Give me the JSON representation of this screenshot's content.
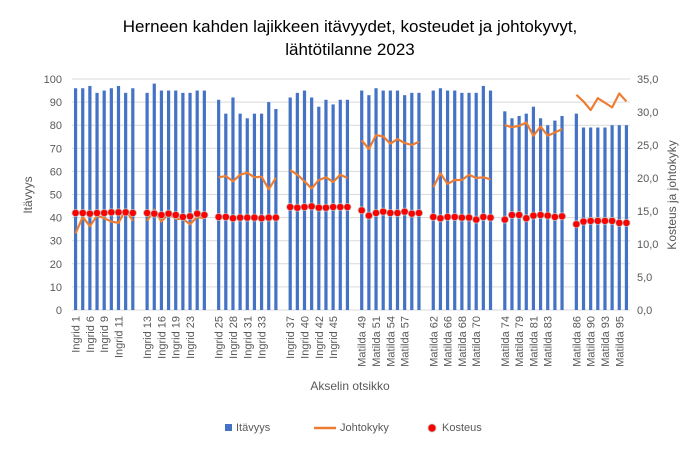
{
  "chart_data": {
    "type": "bar",
    "title_lines": [
      "Herneen kahden lajikkeen itävyydet, kosteudet ja johtokyvyt,",
      "lähtötilanne 2023"
    ],
    "xlabel": "Akselin otsikko",
    "ylabel": "Itävyys",
    "y2label": "Kosteus ja johtokyky",
    "ylim": [
      0,
      100
    ],
    "y2lim": [
      0,
      35
    ],
    "yticks": [
      "0",
      "10",
      "20",
      "30",
      "40",
      "50",
      "60",
      "70",
      "80",
      "90",
      "100"
    ],
    "y2ticks": [
      "0,0",
      "5,0",
      "10,0",
      "15,0",
      "20,0",
      "25,0",
      "30,0",
      "35,0"
    ],
    "grid": true,
    "legend_position": "bottom",
    "categories": [
      "Ingrid 1",
      "",
      "Ingrid 6",
      "",
      "Ingrid 9",
      "",
      "Ingrid 11",
      "",
      "",
      null,
      "Ingrid 13",
      "",
      "Ingrid 16",
      "",
      "Ingrid 19",
      "",
      "Ingrid 23",
      "",
      "",
      null,
      "Ingrid 25",
      "",
      "Ingrid 28",
      "",
      "Ingrid 31",
      "",
      "Ingrid 33",
      "",
      "",
      null,
      "Ingrid 37",
      "",
      "Ingrid 40",
      "",
      "Ingrid 42",
      "",
      "Ingrid 45",
      "",
      "",
      null,
      "Matilda 49",
      "",
      "Matilda 51",
      "",
      "Matilda 54",
      "",
      "Matilda 57",
      "",
      "",
      null,
      "Matilda 62",
      "",
      "Matilda 66",
      "",
      "Matilda 68",
      "",
      "Matilda 70",
      "",
      "",
      null,
      "Matilda 74",
      "",
      "Matilda 79",
      "",
      "Matilda 81",
      "",
      "Matilda 83",
      "",
      "",
      null,
      "Matilda 86",
      "",
      "Matilda 90",
      "",
      "Matilda 93",
      "",
      "Matilda 95",
      ""
    ],
    "series": [
      {
        "name": "Itävyys",
        "type": "bar",
        "axis": "left",
        "color": "#4472C4",
        "values": [
          96,
          96,
          97,
          94,
          95,
          96,
          97,
          94,
          96,
          null,
          94,
          98,
          95,
          95,
          95,
          94,
          94,
          95,
          95,
          null,
          91,
          85,
          92,
          85,
          83,
          85,
          85,
          90,
          87,
          null,
          92,
          94,
          95,
          92,
          88,
          91,
          89,
          91,
          91,
          null,
          95,
          93,
          96,
          95,
          95,
          95,
          93,
          94,
          94,
          null,
          95,
          96,
          95,
          95,
          94,
          94,
          94,
          97,
          95,
          null,
          86,
          83,
          84,
          85,
          88,
          83,
          80,
          82,
          84,
          null,
          85,
          79,
          79,
          79,
          79,
          80,
          80,
          80
        ]
      },
      {
        "name": "Johtokyky",
        "type": "line",
        "axis": "right",
        "color": "#ED7D31",
        "values": [
          11.6,
          14.1,
          12.7,
          14.3,
          13.9,
          13.4,
          13.2,
          15.2,
          13.5,
          null,
          13.5,
          15.2,
          13.4,
          14.6,
          13.8,
          13.8,
          13.0,
          14.1,
          13.9,
          null,
          20.1,
          20.3,
          19.5,
          20.5,
          20.8,
          20.1,
          20.2,
          18.3,
          20.0,
          null,
          21.2,
          20.5,
          19.5,
          18.4,
          19.7,
          20.1,
          19.4,
          20.5,
          20.0,
          null,
          25.7,
          24.4,
          26.5,
          26.3,
          25.2,
          25.9,
          25.3,
          25.0,
          25.5,
          null,
          18.6,
          20.7,
          19.1,
          19.7,
          19.7,
          20.5,
          20.0,
          20.1,
          19.8,
          null,
          28.0,
          27.7,
          27.9,
          28.4,
          26.4,
          27.8,
          26.4,
          26.9,
          27.4,
          null,
          32.6,
          31.6,
          30.3,
          32.1,
          31.4,
          30.7,
          32.8,
          31.6
        ]
      },
      {
        "name": "Kosteus",
        "type": "scatter",
        "axis": "right",
        "color": "#FF0000",
        "values": [
          14.7,
          14.7,
          14.6,
          14.7,
          14.7,
          14.8,
          14.8,
          14.8,
          14.7,
          null,
          14.7,
          14.6,
          14.4,
          14.6,
          14.4,
          14.1,
          14.2,
          14.6,
          14.4,
          null,
          14.1,
          14.1,
          13.9,
          14.0,
          14.0,
          14.0,
          13.9,
          14.0,
          14.0,
          null,
          15.6,
          15.5,
          15.6,
          15.7,
          15.5,
          15.5,
          15.6,
          15.6,
          15.6,
          null,
          15.1,
          14.3,
          14.7,
          14.9,
          14.7,
          14.7,
          14.9,
          14.6,
          14.7,
          null,
          14.1,
          13.9,
          14.1,
          14.1,
          14.0,
          14.0,
          13.7,
          14.1,
          14.0,
          null,
          13.7,
          14.4,
          14.4,
          13.9,
          14.3,
          14.4,
          14.3,
          14.1,
          14.2,
          null,
          13.0,
          13.4,
          13.5,
          13.5,
          13.5,
          13.5,
          13.2,
          13.2
        ]
      }
    ]
  }
}
